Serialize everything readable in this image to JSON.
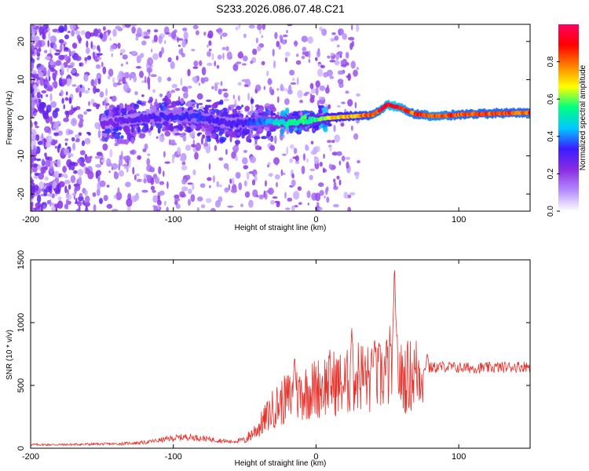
{
  "title": "S233.2026.086.07.48.C21",
  "chart_data": [
    {
      "type": "heatmap",
      "xlabel": "Height of straight line (km)",
      "ylabel": "Frequency (Hz)",
      "xlim": [
        -200,
        150
      ],
      "ylim": [
        -24.5,
        24.5
      ],
      "xticks": [
        -200,
        -100,
        0,
        100
      ],
      "yticks": [
        -20,
        -10,
        0,
        10,
        20
      ],
      "colorbar": {
        "label": "Normalized spectral amplitude",
        "range": [
          0,
          1
        ],
        "ticks": [
          "0.0",
          "0.2",
          "0.4",
          "0.6",
          "0.8"
        ],
        "colors": [
          "#ffffff",
          "#b48cff",
          "#8a2be2",
          "#3a1cff",
          "#00c8ff",
          "#00ff7f",
          "#ffff00",
          "#ff8000",
          "#ff0000",
          "#ff0060"
        ]
      },
      "ridge": {
        "x": [
          -150,
          -120,
          -100,
          -80,
          -60,
          -40,
          -20,
          -10,
          0,
          10,
          20,
          30,
          40,
          45,
          50,
          55,
          60,
          65,
          70,
          80,
          90,
          100,
          110,
          120,
          130,
          140,
          150
        ],
        "y": [
          -1.5,
          0,
          0.5,
          0,
          -1.5,
          -1,
          -1.2,
          -1,
          -0.5,
          0,
          0.3,
          0.5,
          0.8,
          2,
          3.5,
          3,
          2.5,
          1.5,
          1,
          0.5,
          0.5,
          0.8,
          1,
          1,
          1.2,
          1.3,
          1.3
        ],
        "amplitude": [
          0.25,
          0.3,
          0.35,
          0.35,
          0.3,
          0.4,
          0.55,
          0.6,
          0.55,
          0.7,
          0.75,
          0.8,
          0.85,
          0.9,
          0.95,
          1.0,
          0.95,
          0.9,
          0.85,
          0.9,
          0.9,
          0.85,
          0.85,
          0.85,
          0.85,
          0.85,
          0.85
        ]
      }
    },
    {
      "type": "line",
      "xlabel": "Height of straight line (km)",
      "ylabel": "SNR (10 * v/v)",
      "xlim": [
        -200,
        150
      ],
      "ylim": [
        0,
        1500
      ],
      "xticks": [
        -200,
        -100,
        0,
        100
      ],
      "yticks": [
        0,
        500,
        1000,
        1500
      ],
      "series": [
        {
          "name": "SNR",
          "color": "#e8302a",
          "x": [
            -200,
            -180,
            -160,
            -140,
            -120,
            -100,
            -90,
            -80,
            -60,
            -50,
            -40,
            -30,
            -20,
            -10,
            0,
            10,
            20,
            30,
            40,
            50,
            55,
            60,
            70,
            80,
            90,
            100,
            110,
            120,
            130,
            140,
            150
          ],
          "y": [
            25,
            25,
            28,
            30,
            40,
            70,
            80,
            70,
            45,
            60,
            160,
            300,
            380,
            420,
            450,
            500,
            480,
            560,
            500,
            580,
            700,
            520,
            570,
            640,
            650,
            640,
            640,
            640,
            645,
            650,
            650
          ]
        }
      ],
      "peaks": [
        {
          "x": 55,
          "y": 1500
        },
        {
          "x": 41,
          "y": 900
        },
        {
          "x": 25,
          "y": 970
        },
        {
          "x": -15,
          "y": 750
        },
        {
          "x": 78,
          "y": 760
        }
      ]
    }
  ]
}
